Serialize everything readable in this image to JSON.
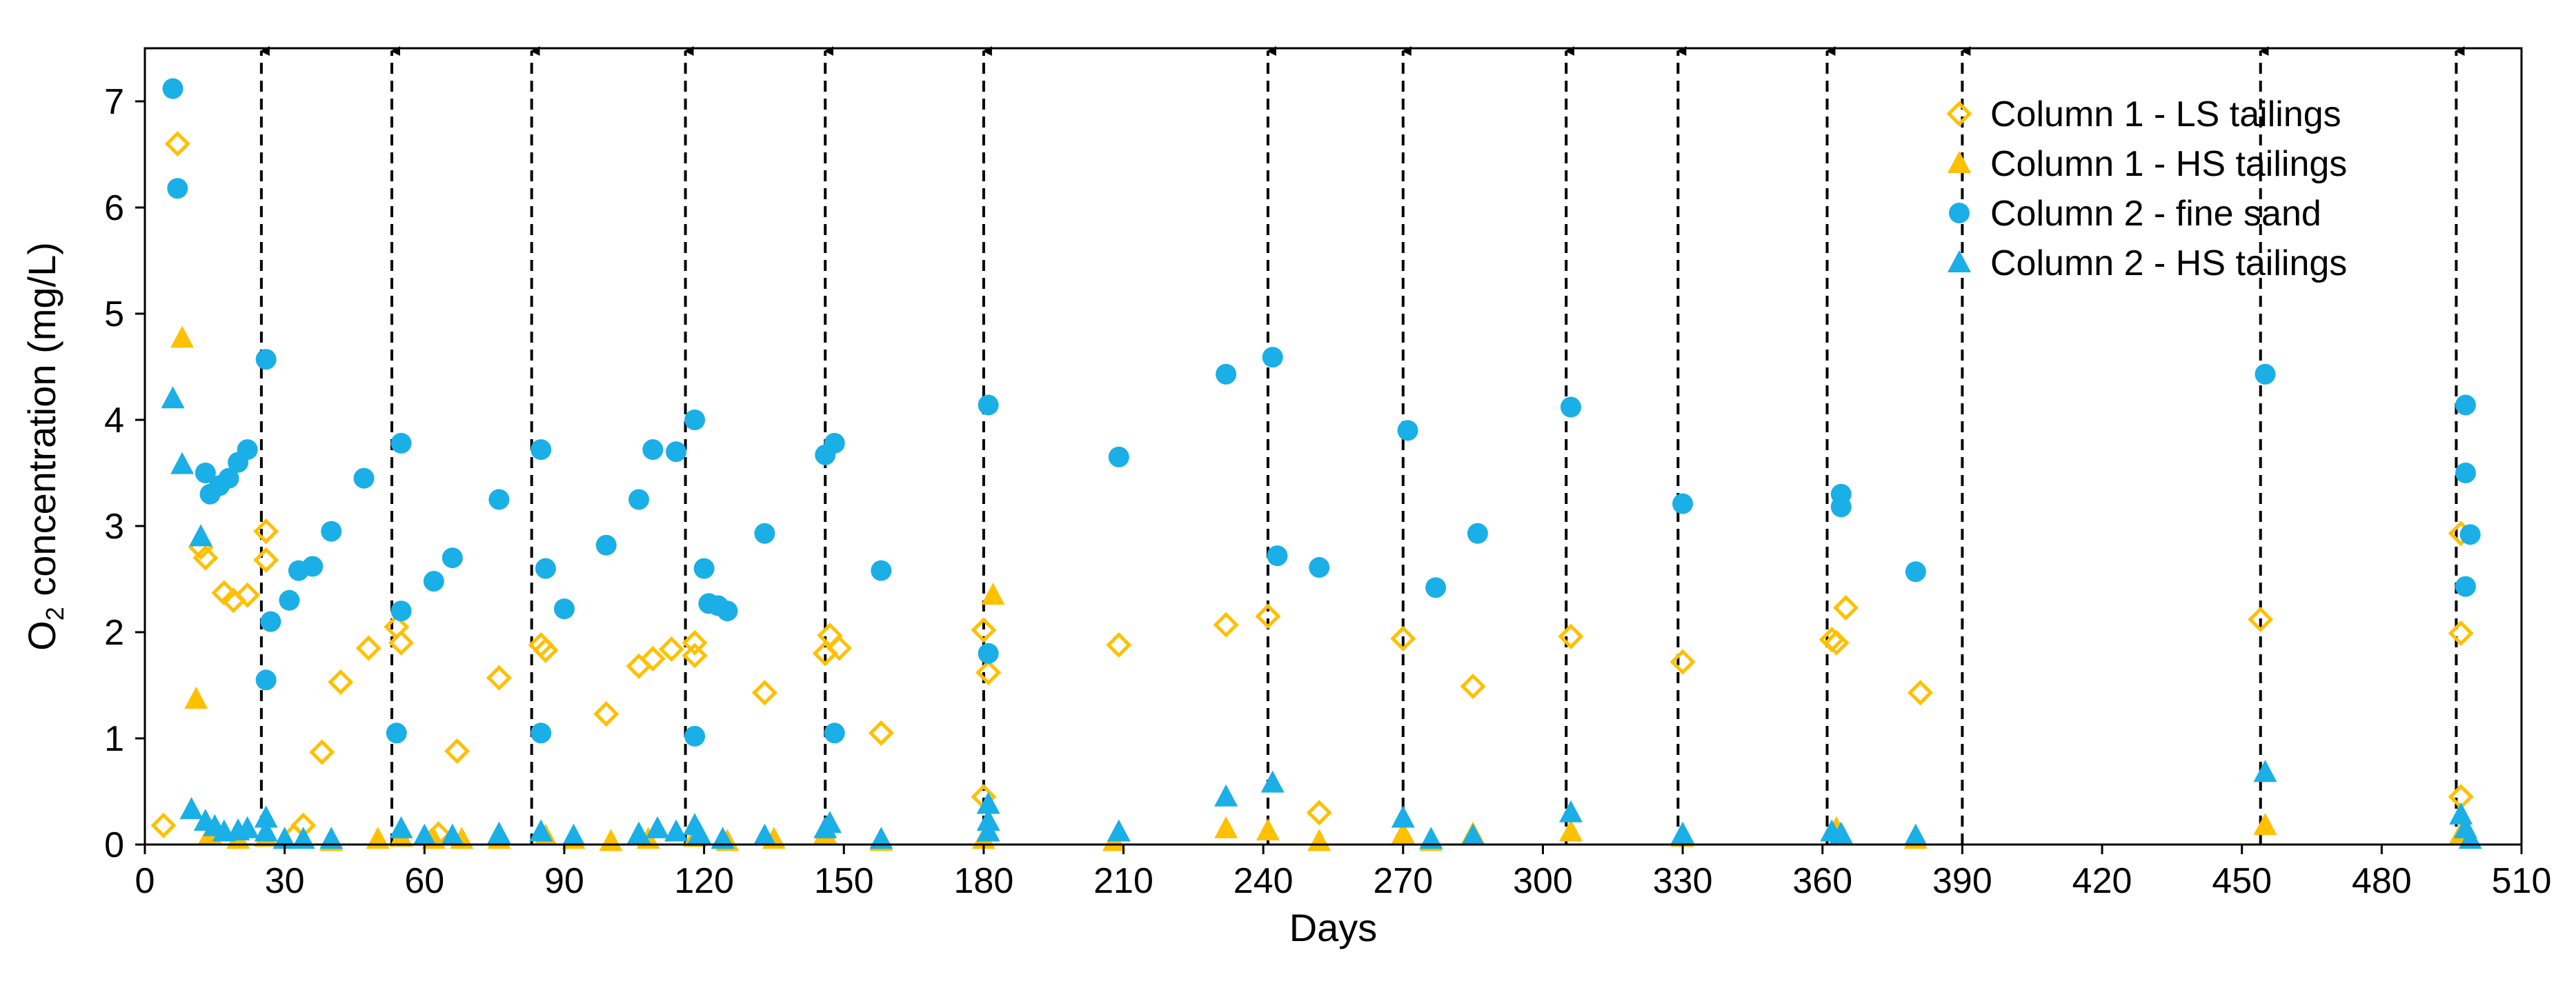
{
  "chart_data": {
    "type": "scatter",
    "title": "",
    "xlabel": "Days",
    "ylabel": "O2 concentration (mg/L)",
    "ylabel_parts": {
      "pre": "O",
      "sub": "2",
      "post": " concentration (mg/L)"
    },
    "xlim": [
      0,
      510
    ],
    "ylim": [
      0,
      7.5
    ],
    "xticks": [
      "0",
      "30",
      "60",
      "90",
      "120",
      "150",
      "180",
      "210",
      "240",
      "270",
      "300",
      "330",
      "360",
      "390",
      "420",
      "450",
      "480",
      "510"
    ],
    "yticks": [
      "0",
      "1",
      "2",
      "3",
      "4",
      "5",
      "6",
      "7"
    ],
    "grid": false,
    "legend_position": "top-right",
    "event_days": [
      25,
      53,
      83,
      116,
      146,
      180,
      241,
      270,
      305,
      329,
      361,
      390,
      454,
      496
    ],
    "colors": {
      "orange": "#FFC000",
      "blue": "#1AAFE6",
      "arrow": "#000000"
    },
    "series": [
      {
        "name": "Column 1 - LS tailings",
        "marker": "diamond-open",
        "color": "#FFC000",
        "points": [
          [
            4,
            0.18
          ],
          [
            7,
            6.6
          ],
          [
            12,
            2.8
          ],
          [
            13,
            2.7
          ],
          [
            17,
            2.37
          ],
          [
            19,
            2.3
          ],
          [
            22,
            2.35
          ],
          [
            26,
            2.95
          ],
          [
            26,
            2.68
          ],
          [
            32,
            0.08
          ],
          [
            34,
            0.18
          ],
          [
            38,
            0.87
          ],
          [
            42,
            1.53
          ],
          [
            48,
            1.85
          ],
          [
            54,
            2.05
          ],
          [
            55,
            1.9
          ],
          [
            63,
            0.1
          ],
          [
            67,
            0.88
          ],
          [
            76,
            1.57
          ],
          [
            85,
            1.88
          ],
          [
            86,
            1.83
          ],
          [
            99,
            1.23
          ],
          [
            106,
            1.68
          ],
          [
            109,
            1.75
          ],
          [
            113,
            1.84
          ],
          [
            118,
            1.9
          ],
          [
            118,
            1.78
          ],
          [
            133,
            1.43
          ],
          [
            146,
            1.8
          ],
          [
            147,
            1.97
          ],
          [
            149,
            1.85
          ],
          [
            158,
            1.05
          ],
          [
            180,
            0.45
          ],
          [
            180,
            2.02
          ],
          [
            181,
            1.62
          ],
          [
            209,
            1.88
          ],
          [
            232,
            2.07
          ],
          [
            241,
            2.15
          ],
          [
            252,
            0.3
          ],
          [
            270,
            1.94
          ],
          [
            285,
            1.49
          ],
          [
            306,
            1.96
          ],
          [
            330,
            1.72
          ],
          [
            362,
            1.93
          ],
          [
            363,
            1.9
          ],
          [
            365,
            2.23
          ],
          [
            381,
            1.43
          ],
          [
            454,
            2.12
          ],
          [
            497,
            2.93
          ],
          [
            497,
            1.99
          ],
          [
            497,
            0.45
          ]
        ]
      },
      {
        "name": "Column 1 - HS tailings",
        "marker": "triangle",
        "color": "#FFC000",
        "points": [
          [
            8,
            4.77
          ],
          [
            11,
            1.37
          ],
          [
            14,
            0.1
          ],
          [
            20,
            0.05
          ],
          [
            26,
            0.07
          ],
          [
            30,
            0.05
          ],
          [
            40,
            0.03
          ],
          [
            50,
            0.05
          ],
          [
            55,
            0.07
          ],
          [
            62,
            0.05
          ],
          [
            68,
            0.05
          ],
          [
            76,
            0.05
          ],
          [
            86,
            0.08
          ],
          [
            92,
            0.05
          ],
          [
            100,
            0.03
          ],
          [
            108,
            0.05
          ],
          [
            118,
            0.07
          ],
          [
            125,
            0.03
          ],
          [
            135,
            0.05
          ],
          [
            146,
            0.1
          ],
          [
            158,
            0.03
          ],
          [
            180,
            0.05
          ],
          [
            182,
            2.35
          ],
          [
            208,
            0.03
          ],
          [
            232,
            0.15
          ],
          [
            241,
            0.13
          ],
          [
            252,
            0.03
          ],
          [
            270,
            0.1
          ],
          [
            276,
            0.03
          ],
          [
            285,
            0.1
          ],
          [
            306,
            0.12
          ],
          [
            330,
            0.07
          ],
          [
            363,
            0.15
          ],
          [
            380,
            0.05
          ],
          [
            455,
            0.18
          ],
          [
            497,
            0.1
          ]
        ]
      },
      {
        "name": "Column 2 - fine sand",
        "marker": "circle",
        "color": "#1AAFE6",
        "points": [
          [
            6,
            7.12
          ],
          [
            7,
            6.18
          ],
          [
            13,
            3.5
          ],
          [
            14,
            3.3
          ],
          [
            16,
            3.38
          ],
          [
            18,
            3.45
          ],
          [
            20,
            3.6
          ],
          [
            22,
            3.72
          ],
          [
            26,
            4.57
          ],
          [
            26,
            1.55
          ],
          [
            27,
            2.1
          ],
          [
            31,
            2.3
          ],
          [
            33,
            2.58
          ],
          [
            36,
            2.62
          ],
          [
            40,
            2.95
          ],
          [
            47,
            3.45
          ],
          [
            54,
            1.05
          ],
          [
            55,
            2.2
          ],
          [
            55,
            3.78
          ],
          [
            62,
            2.48
          ],
          [
            66,
            2.7
          ],
          [
            76,
            3.25
          ],
          [
            85,
            3.72
          ],
          [
            86,
            2.6
          ],
          [
            85,
            1.05
          ],
          [
            90,
            2.22
          ],
          [
            99,
            2.82
          ],
          [
            106,
            3.25
          ],
          [
            109,
            3.72
          ],
          [
            114,
            3.7
          ],
          [
            118,
            4.0
          ],
          [
            118,
            1.02
          ],
          [
            120,
            2.6
          ],
          [
            121,
            2.27
          ],
          [
            123,
            2.25
          ],
          [
            125,
            2.2
          ],
          [
            133,
            2.93
          ],
          [
            146,
            3.67
          ],
          [
            148,
            3.78
          ],
          [
            148,
            1.05
          ],
          [
            158,
            2.58
          ],
          [
            181,
            4.14
          ],
          [
            181,
            1.8
          ],
          [
            209,
            3.65
          ],
          [
            232,
            4.43
          ],
          [
            242,
            4.59
          ],
          [
            243,
            2.72
          ],
          [
            252,
            2.61
          ],
          [
            271,
            3.9
          ],
          [
            277,
            2.42
          ],
          [
            286,
            2.93
          ],
          [
            306,
            4.12
          ],
          [
            330,
            3.21
          ],
          [
            364,
            3.3
          ],
          [
            364,
            3.18
          ],
          [
            380,
            2.57
          ],
          [
            455,
            4.43
          ],
          [
            498,
            4.14
          ],
          [
            498,
            3.5
          ],
          [
            498,
            2.43
          ],
          [
            499,
            2.92
          ]
        ]
      },
      {
        "name": "Column 2 - HS tailings",
        "marker": "triangle",
        "color": "#1AAFE6",
        "points": [
          [
            6,
            4.2
          ],
          [
            8,
            3.58
          ],
          [
            10,
            0.33
          ],
          [
            12,
            2.9
          ],
          [
            13,
            0.22
          ],
          [
            15,
            0.17
          ],
          [
            17,
            0.12
          ],
          [
            20,
            0.13
          ],
          [
            22,
            0.15
          ],
          [
            26,
            0.25
          ],
          [
            26,
            0.12
          ],
          [
            30,
            0.05
          ],
          [
            34,
            0.05
          ],
          [
            40,
            0.05
          ],
          [
            55,
            0.15
          ],
          [
            60,
            0.08
          ],
          [
            66,
            0.08
          ],
          [
            76,
            0.1
          ],
          [
            85,
            0.12
          ],
          [
            92,
            0.08
          ],
          [
            106,
            0.1
          ],
          [
            110,
            0.15
          ],
          [
            114,
            0.12
          ],
          [
            118,
            0.18
          ],
          [
            119,
            0.1
          ],
          [
            124,
            0.05
          ],
          [
            133,
            0.08
          ],
          [
            146,
            0.15
          ],
          [
            147,
            0.2
          ],
          [
            158,
            0.05
          ],
          [
            181,
            0.38
          ],
          [
            181,
            0.22
          ],
          [
            181,
            0.12
          ],
          [
            209,
            0.12
          ],
          [
            232,
            0.45
          ],
          [
            242,
            0.58
          ],
          [
            270,
            0.25
          ],
          [
            276,
            0.05
          ],
          [
            285,
            0.08
          ],
          [
            306,
            0.3
          ],
          [
            330,
            0.1
          ],
          [
            362,
            0.12
          ],
          [
            364,
            0.1
          ],
          [
            380,
            0.08
          ],
          [
            455,
            0.68
          ],
          [
            497,
            0.28
          ],
          [
            498,
            0.15
          ],
          [
            499,
            0.05
          ]
        ]
      }
    ]
  }
}
